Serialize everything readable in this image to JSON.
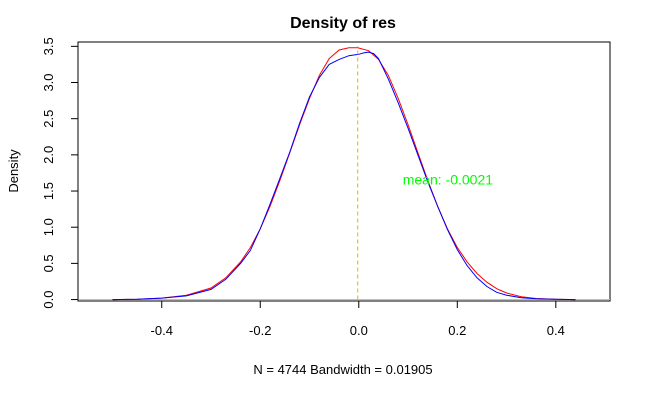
{
  "colors": {
    "density_line": "#0000ff",
    "normal_line": "#ff0000",
    "mean_line": "#ffa500",
    "mean_label": "#00ff00",
    "baseline": "#bebebe",
    "axis": "#000000"
  },
  "chart_data": {
    "type": "line",
    "title": "Density of res",
    "xlabel": "N = 4744   Bandwidth = 0.01905",
    "ylabel": "Density",
    "xlim": [
      -0.57,
      0.51
    ],
    "ylim": [
      -0.02,
      3.56
    ],
    "x_ticks": [
      -0.4,
      -0.2,
      0.0,
      0.2,
      0.4
    ],
    "x_tick_labels": [
      "-0.4",
      "-0.2",
      "0.0",
      "0.2",
      "0.4"
    ],
    "y_ticks": [
      0.0,
      0.5,
      1.0,
      1.5,
      2.0,
      2.5,
      3.0,
      3.5
    ],
    "y_tick_labels": [
      "0.0",
      "0.5",
      "1.0",
      "1.5",
      "2.0",
      "2.5",
      "3.0",
      "3.5"
    ],
    "grid": false,
    "series": [
      {
        "style": "density",
        "x": [
          -0.5,
          -0.45,
          -0.4,
          -0.35,
          -0.3,
          -0.27,
          -0.24,
          -0.22,
          -0.2,
          -0.18,
          -0.16,
          -0.14,
          -0.12,
          -0.1,
          -0.08,
          -0.06,
          -0.04,
          -0.02,
          0.0,
          0.01,
          0.02,
          0.03,
          0.04,
          0.06,
          0.08,
          0.1,
          0.12,
          0.14,
          0.16,
          0.18,
          0.2,
          0.22,
          0.24,
          0.26,
          0.28,
          0.3,
          0.33,
          0.36,
          0.4,
          0.44
        ],
        "values": [
          0.0,
          0.005,
          0.02,
          0.05,
          0.14,
          0.28,
          0.5,
          0.68,
          0.98,
          1.32,
          1.68,
          2.04,
          2.44,
          2.8,
          3.07,
          3.25,
          3.32,
          3.37,
          3.39,
          3.41,
          3.42,
          3.4,
          3.33,
          3.05,
          2.72,
          2.37,
          2.0,
          1.63,
          1.29,
          0.97,
          0.69,
          0.47,
          0.3,
          0.18,
          0.1,
          0.06,
          0.025,
          0.01,
          0.003,
          0.0
        ]
      },
      {
        "style": "normal",
        "x": [
          -0.5,
          -0.45,
          -0.4,
          -0.35,
          -0.3,
          -0.27,
          -0.24,
          -0.22,
          -0.2,
          -0.18,
          -0.16,
          -0.14,
          -0.12,
          -0.1,
          -0.08,
          -0.06,
          -0.04,
          -0.02,
          -0.0021,
          0.02,
          0.04,
          0.06,
          0.08,
          0.1,
          0.12,
          0.14,
          0.16,
          0.18,
          0.2,
          0.22,
          0.24,
          0.26,
          0.28,
          0.3,
          0.33,
          0.36,
          0.4,
          0.44
        ],
        "values": [
          0.0,
          0.005,
          0.02,
          0.06,
          0.16,
          0.3,
          0.52,
          0.72,
          0.98,
          1.29,
          1.65,
          2.03,
          2.42,
          2.78,
          3.1,
          3.33,
          3.45,
          3.48,
          3.48,
          3.44,
          3.32,
          3.1,
          2.78,
          2.42,
          2.03,
          1.65,
          1.29,
          0.98,
          0.72,
          0.52,
          0.36,
          0.24,
          0.15,
          0.09,
          0.04,
          0.015,
          0.004,
          0.0
        ]
      }
    ],
    "mean": -0.0021,
    "annotation": "mean: -0.0021",
    "annotation_pos": [
      0.12,
      1.66
    ]
  }
}
